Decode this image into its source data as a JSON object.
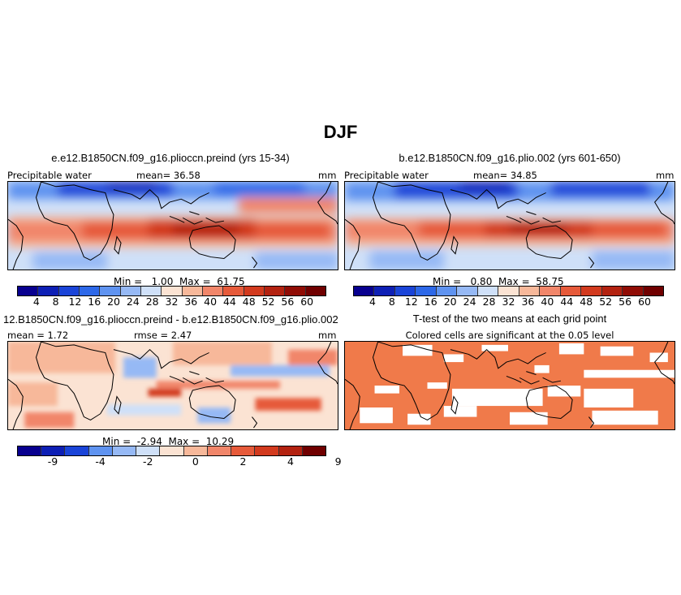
{
  "title": "DJF",
  "colors": {
    "precip": [
      "#08008f",
      "#0d1fb5",
      "#1a44d8",
      "#2d68e8",
      "#5f93f0",
      "#96b9f5",
      "#cfe0f8",
      "#fbe3d3",
      "#f7b89a",
      "#f1866a",
      "#e65a3a",
      "#d23a1e",
      "#b32210",
      "#900c05",
      "#700000"
    ],
    "diff": [
      "#08008f",
      "#0d1fb5",
      "#1a44d8",
      "#5f93f0",
      "#96b9f5",
      "#cfe0f8",
      "#fbe3d3",
      "#f7b89a",
      "#f1866a",
      "#e65a3a",
      "#d23a1e",
      "#b32210",
      "#700000"
    ],
    "significant": "#f07a4a"
  },
  "panels": {
    "tl": {
      "title": "e.e12.B1850CN.f09_g16.plioccn.preind (yrs 15-34)",
      "left_label": "Precipitable water",
      "mean_label": "mean=  36.58",
      "units": "mm",
      "minmax": "Min =   1.00  Max =  61.75"
    },
    "tr": {
      "title": "b.e12.B1850CN.f09_g16.plio.002 (yrs 601-650)",
      "left_label": "Precipitable water",
      "mean_label": "mean=  34.85",
      "units": "mm",
      "minmax": "Min =   0.80  Max =  58.75"
    },
    "bl": {
      "title": "12.B1850CN.f09_g16.plioccn.preind - b.e12.B1850CN.f09_g16.plio.002",
      "left_label": "mean =  1.72",
      "mean_label": "rmse =  2.47",
      "units": "mm",
      "minmax": "Min =  -2.94  Max =  10.29"
    },
    "br": {
      "title": "T-test of the two means at each grid point",
      "subtitle": "Colored cells are significant at the 0.05 level"
    }
  },
  "precip_ticks": [
    "4",
    "8",
    "12",
    "16",
    "20",
    "24",
    "28",
    "32",
    "36",
    "40",
    "44",
    "48",
    "52",
    "56",
    "60"
  ],
  "diff_ticks": [
    "-9",
    "-4",
    "-2",
    "0",
    "2",
    "4",
    "9"
  ]
}
